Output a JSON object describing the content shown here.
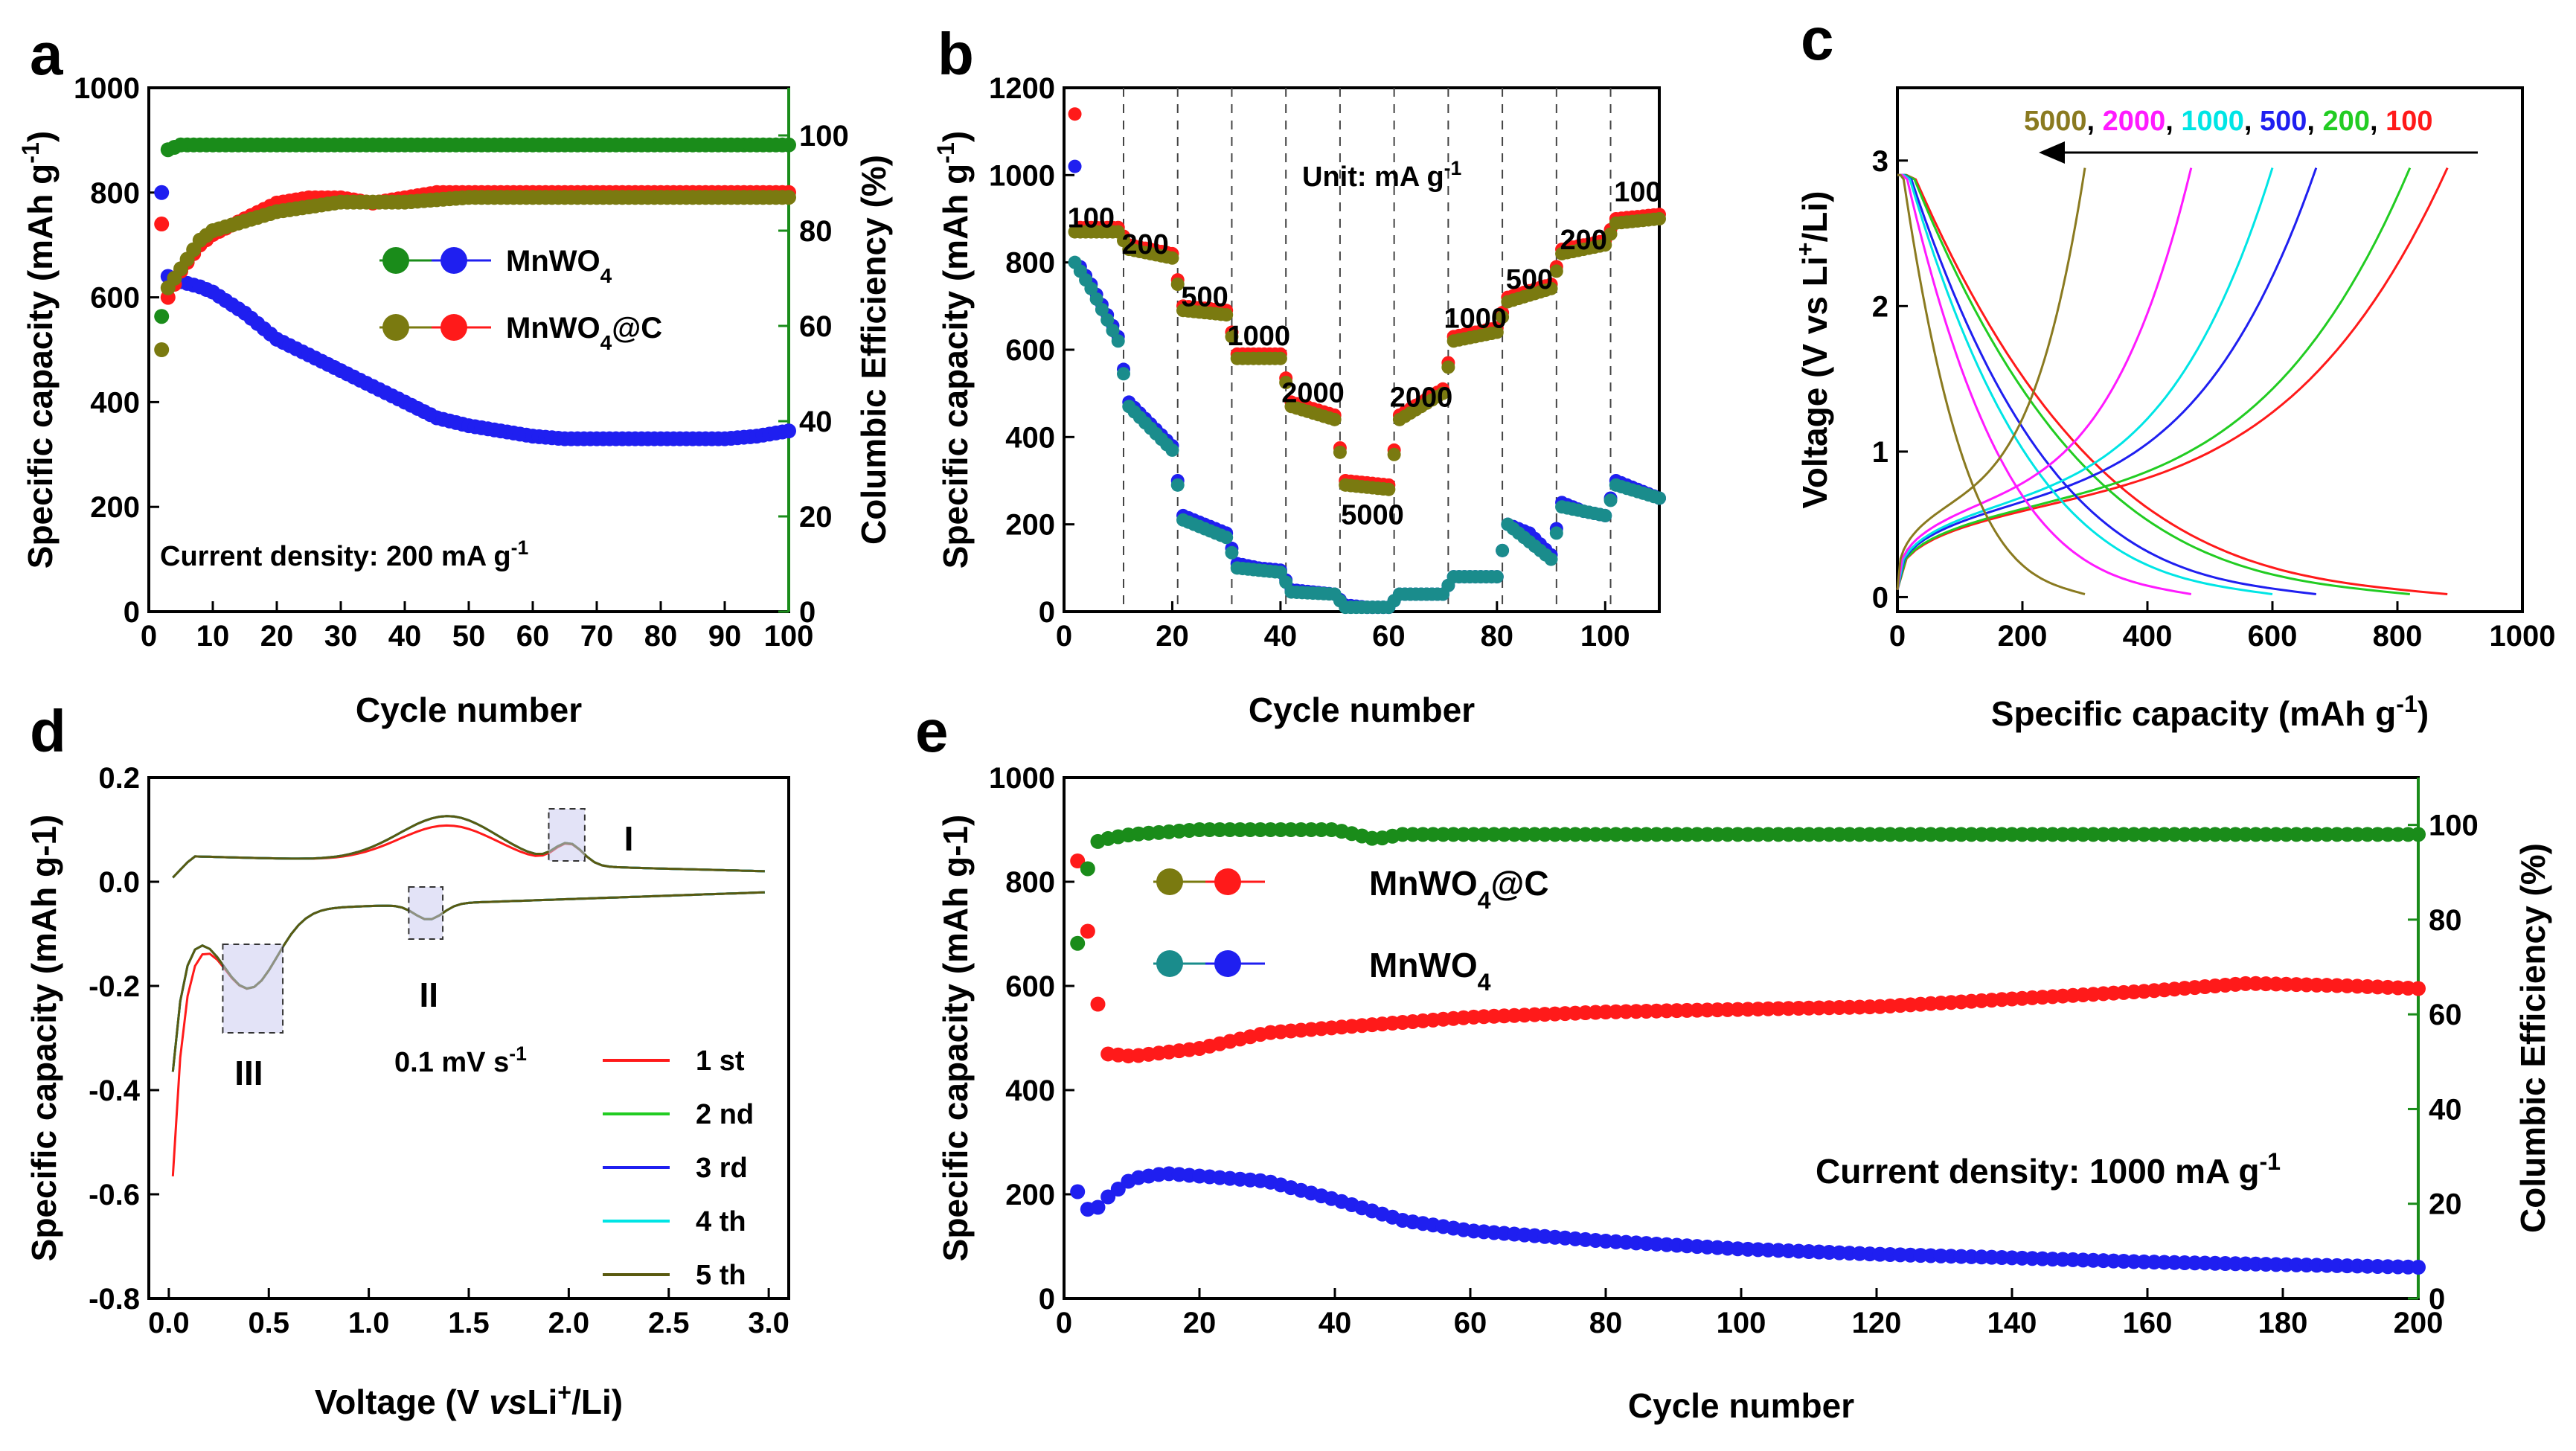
{
  "colors": {
    "green": "#1a8c1a",
    "blue": "#1f1ff0",
    "red": "#ff1a1a",
    "olive": "#7a7a10",
    "teal": "#1a8c8c",
    "cyan": "#00e5e5",
    "magenta": "#ff1aff",
    "lime": "#22cc22",
    "tan": "#8a7a20",
    "dark_olive": "#5a5a10"
  },
  "chart_data": [
    {
      "panel": "a",
      "type": "scatter",
      "panel_label": "a",
      "xlabel": "Cycle number",
      "ylabel": "Specific capacity (mAh g",
      "ylabel_sup": "-1",
      "ylabel_end": ")",
      "y2label": "Columbic Efficiency (%)",
      "xlim": [
        0,
        100
      ],
      "ylim": [
        0,
        1000
      ],
      "y2lim": [
        0,
        110
      ],
      "xticks": [
        0,
        10,
        20,
        30,
        40,
        50,
        60,
        70,
        80,
        90,
        100
      ],
      "yticks": [
        0,
        200,
        400,
        600,
        800,
        1000
      ],
      "y2ticks": [
        0,
        20,
        40,
        60,
        80,
        100
      ],
      "annotation": "Current density: 200 mA g",
      "annotation_sup": "-1",
      "legend": [
        {
          "label": "MnWO",
          "sub": "4",
          "suffix": "",
          "left_color": "green",
          "right_color": "blue"
        },
        {
          "label": "MnWO",
          "sub": "4",
          "suffix": "@C",
          "left_color": "olive",
          "right_color": "red"
        }
      ],
      "series": [
        {
          "name": "MnWO4 capacity",
          "color": "blue",
          "axis": "left",
          "x": [
            2,
            3,
            5,
            8,
            10,
            15,
            20,
            25,
            30,
            35,
            40,
            45,
            50,
            55,
            60,
            65,
            70,
            75,
            80,
            85,
            90,
            95,
            100
          ],
          "y": [
            800,
            640,
            630,
            620,
            610,
            570,
            520,
            490,
            460,
            430,
            400,
            370,
            355,
            345,
            335,
            330,
            330,
            330,
            330,
            330,
            330,
            335,
            345
          ]
        },
        {
          "name": "MnWO4@C capacity",
          "color": "red",
          "axis": "left",
          "x": [
            2,
            3,
            5,
            8,
            10,
            15,
            20,
            25,
            30,
            35,
            40,
            45,
            50,
            55,
            60,
            65,
            70,
            75,
            80,
            85,
            90,
            95,
            100
          ],
          "y": [
            740,
            600,
            650,
            700,
            720,
            750,
            780,
            790,
            790,
            780,
            790,
            800,
            800,
            800,
            800,
            800,
            800,
            800,
            800,
            800,
            800,
            800,
            800
          ]
        },
        {
          "name": "MnWO4 CE",
          "color": "green",
          "axis": "right",
          "x": [
            2,
            3,
            5,
            10,
            20,
            30,
            40,
            50,
            60,
            70,
            80,
            90,
            100
          ],
          "y": [
            62,
            97,
            98,
            98,
            98,
            98,
            98,
            98,
            98,
            98,
            98,
            98,
            98
          ]
        },
        {
          "name": "MnWO4@C CE",
          "color": "olive",
          "axis": "right",
          "x": [
            2,
            3,
            5,
            8,
            10,
            20,
            30,
            40,
            50,
            60,
            70,
            80,
            90,
            100
          ],
          "y": [
            55,
            68,
            72,
            78,
            80,
            84,
            86,
            86,
            87,
            87,
            87,
            87,
            87,
            87
          ]
        }
      ]
    },
    {
      "panel": "b",
      "type": "scatter",
      "panel_label": "b",
      "xlabel": "Cycle number",
      "ylabel": "Specific capacity (mAh g",
      "ylabel_sup": "-1",
      "ylabel_end": ")",
      "xlim": [
        0,
        110
      ],
      "ylim": [
        0,
        1200
      ],
      "xticks": [
        0,
        20,
        40,
        60,
        80,
        100
      ],
      "yticks": [
        0,
        200,
        400,
        600,
        800,
        1000,
        1200
      ],
      "unit_label": "Unit: mA g",
      "unit_sup": "-1",
      "rate_labels": [
        {
          "text": "100",
          "x": 5,
          "y": 880
        },
        {
          "text": "200",
          "x": 15,
          "y": 820
        },
        {
          "text": "500",
          "x": 26,
          "y": 700
        },
        {
          "text": "1000",
          "x": 36,
          "y": 610
        },
        {
          "text": "2000",
          "x": 46,
          "y": 480
        },
        {
          "text": "5000",
          "x": 57,
          "y": 200
        },
        {
          "text": "2000",
          "x": 66,
          "y": 470
        },
        {
          "text": "1000",
          "x": 76,
          "y": 650
        },
        {
          "text": "500",
          "x": 86,
          "y": 740
        },
        {
          "text": "200",
          "x": 96,
          "y": 830
        },
        {
          "text": "100",
          "x": 106,
          "y": 940
        }
      ],
      "separators": [
        11,
        21,
        31,
        41,
        51,
        61,
        71,
        81,
        91,
        101
      ],
      "series": [
        {
          "name": "MnWO4@C",
          "color": "red",
          "x": [
            2,
            3,
            5,
            10,
            12,
            20,
            22,
            30,
            32,
            40,
            42,
            50,
            52,
            60,
            62,
            70,
            72,
            80,
            82,
            90,
            92,
            100,
            102,
            110
          ],
          "y": [
            1140,
            880,
            880,
            880,
            840,
            820,
            700,
            690,
            590,
            590,
            480,
            450,
            300,
            290,
            450,
            510,
            630,
            650,
            720,
            750,
            830,
            850,
            900,
            910
          ]
        },
        {
          "name": "MnWO4@C charge",
          "color": "olive",
          "x": [
            2,
            5,
            10,
            12,
            20,
            22,
            30,
            32,
            40,
            42,
            50,
            52,
            60,
            62,
            70,
            72,
            80,
            82,
            90,
            92,
            100,
            102,
            110
          ],
          "y": [
            870,
            870,
            870,
            830,
            810,
            690,
            680,
            580,
            580,
            470,
            440,
            290,
            280,
            440,
            500,
            620,
            640,
            710,
            740,
            820,
            840,
            890,
            900
          ]
        },
        {
          "name": "MnWO4",
          "color": "blue",
          "x": [
            2,
            3,
            5,
            8,
            10,
            12,
            16,
            20,
            22,
            26,
            30,
            32,
            36,
            40,
            42,
            46,
            50,
            52,
            56,
            60,
            62,
            66,
            70,
            72,
            76,
            80,
            82,
            86,
            90,
            92,
            96,
            100,
            102,
            106,
            110
          ],
          "y": [
            1020,
            790,
            750,
            680,
            630,
            480,
            430,
            380,
            220,
            200,
            180,
            110,
            100,
            95,
            50,
            45,
            40,
            15,
            10,
            10,
            40,
            40,
            40,
            80,
            80,
            80,
            200,
            180,
            130,
            250,
            230,
            220,
            300,
            280,
            260
          ]
        },
        {
          "name": "MnWO4 charge",
          "color": "teal",
          "x": [
            2,
            5,
            10,
            12,
            20,
            22,
            30,
            32,
            40,
            42,
            50,
            52,
            60,
            62,
            70,
            72,
            80,
            82,
            90,
            92,
            100,
            102,
            110
          ],
          "y": [
            800,
            740,
            620,
            470,
            370,
            210,
            170,
            100,
            90,
            45,
            40,
            10,
            10,
            40,
            40,
            80,
            80,
            200,
            120,
            240,
            220,
            290,
            260
          ]
        }
      ]
    },
    {
      "panel": "c",
      "type": "line",
      "panel_label": "c",
      "xlabel": "Specific capacity (mAh g",
      "xlabel_sup": "-1",
      "xlabel_end": ")",
      "ylabel": "Voltage (V vs Li",
      "ylabel_sup": "+",
      "ylabel_end": "/Li)",
      "xlim": [
        0,
        1000
      ],
      "ylim": [
        -0.1,
        3.5
      ],
      "xticks": [
        0,
        200,
        400,
        600,
        800,
        1000
      ],
      "yticks": [
        0,
        1,
        2,
        3
      ],
      "legend_rates": [
        {
          "text": "5000",
          "color": "tan"
        },
        {
          "text": "2000",
          "color": "magenta"
        },
        {
          "text": "1000",
          "color": "cyan"
        },
        {
          "text": "500",
          "color": "blue"
        },
        {
          "text": "200",
          "color": "lime"
        },
        {
          "text": "100",
          "color": "red"
        }
      ],
      "separator": ", ",
      "curves": [
        {
          "rate": 100,
          "color": "red",
          "cap": 880
        },
        {
          "rate": 200,
          "color": "lime",
          "cap": 820
        },
        {
          "rate": 500,
          "color": "blue",
          "cap": 670
        },
        {
          "rate": 1000,
          "color": "cyan",
          "cap": 600
        },
        {
          "rate": 2000,
          "color": "magenta",
          "cap": 470
        },
        {
          "rate": 5000,
          "color": "tan",
          "cap": 300
        }
      ]
    },
    {
      "panel": "d",
      "type": "line",
      "panel_label": "d",
      "xlabel": "Voltage (V vs Li",
      "xlabel_sup": "+",
      "xlabel_end": "/Li)",
      "ylabel": "Specific capacity (mAh g-1)",
      "xlim": [
        -0.1,
        3.1
      ],
      "ylim": [
        -0.8,
        0.2
      ],
      "xticks": [
        0.0,
        0.5,
        1.0,
        1.5,
        2.0,
        2.5,
        3.0
      ],
      "xtick_labels": [
        "0.0",
        "0.5",
        "1.0",
        "1.5",
        "2.0",
        "2.5",
        "3.0"
      ],
      "yticks": [
        -0.8,
        -0.6,
        -0.4,
        -0.2,
        0.0,
        0.2
      ],
      "ytick_labels": [
        "-0.8",
        "-0.6",
        "-0.4",
        "-0.2",
        "0.0",
        "0.2"
      ],
      "scan_rate": "0.1 mV s",
      "scan_rate_sup": "-1",
      "peaks": [
        {
          "label": "I",
          "x": 2.0,
          "y": 0.09
        },
        {
          "label": "II",
          "x": 1.3,
          "y": -0.05
        },
        {
          "label": "III",
          "x": 0.4,
          "y": -0.2
        }
      ],
      "legend": [
        {
          "label": "1 st",
          "color": "red"
        },
        {
          "label": "2 nd",
          "color": "lime"
        },
        {
          "label": "3 rd",
          "color": "blue"
        },
        {
          "label": "4 th",
          "color": "cyan"
        },
        {
          "label": "5 th",
          "color": "dark_olive"
        }
      ]
    },
    {
      "panel": "e",
      "type": "scatter",
      "panel_label": "e",
      "xlabel": "Cycle number",
      "ylabel": "Specific capacity (mAh g-1)",
      "y2label": "Columbic Efficiency (%)",
      "xlim": [
        0,
        200
      ],
      "ylim": [
        0,
        1000
      ],
      "y2lim": [
        0,
        110
      ],
      "xticks": [
        0,
        20,
        40,
        60,
        80,
        100,
        120,
        140,
        160,
        180,
        200
      ],
      "yticks": [
        0,
        200,
        400,
        600,
        800,
        1000
      ],
      "y2ticks": [
        0,
        20,
        40,
        60,
        80,
        100
      ],
      "annotation": "Current density: 1000 mA g",
      "annotation_sup": "-1",
      "legend": [
        {
          "label": "MnWO",
          "sub": "4",
          "suffix": "@C",
          "left_color": "olive",
          "right_color": "red"
        },
        {
          "label": "MnWO",
          "sub": "4",
          "suffix": "",
          "left_color": "teal",
          "right_color": "blue"
        }
      ],
      "series": [
        {
          "name": "MnWO4@C",
          "color": "red",
          "axis": "left",
          "x": [
            2,
            4,
            6,
            10,
            20,
            30,
            40,
            50,
            60,
            80,
            100,
            120,
            140,
            160,
            175,
            190,
            200
          ],
          "y": [
            840,
            660,
            470,
            465,
            480,
            510,
            520,
            530,
            540,
            550,
            555,
            560,
            575,
            590,
            605,
            600,
            595
          ]
        },
        {
          "name": "MnWO4",
          "color": "blue",
          "axis": "left",
          "x": [
            2,
            4,
            6,
            10,
            15,
            20,
            30,
            40,
            50,
            60,
            80,
            100,
            120,
            140,
            160,
            180,
            200
          ],
          "y": [
            205,
            160,
            190,
            230,
            240,
            235,
            225,
            190,
            150,
            130,
            110,
            95,
            85,
            78,
            70,
            65,
            60
          ]
        },
        {
          "name": "MnWO4@C CE",
          "color": "green",
          "axis": "right",
          "x": [
            2,
            4,
            6,
            10,
            20,
            40,
            46,
            50,
            80,
            120,
            160,
            200
          ],
          "y": [
            75,
            96,
            97,
            98,
            99,
            99,
            97,
            98,
            98,
            98,
            98,
            98
          ]
        }
      ]
    }
  ]
}
